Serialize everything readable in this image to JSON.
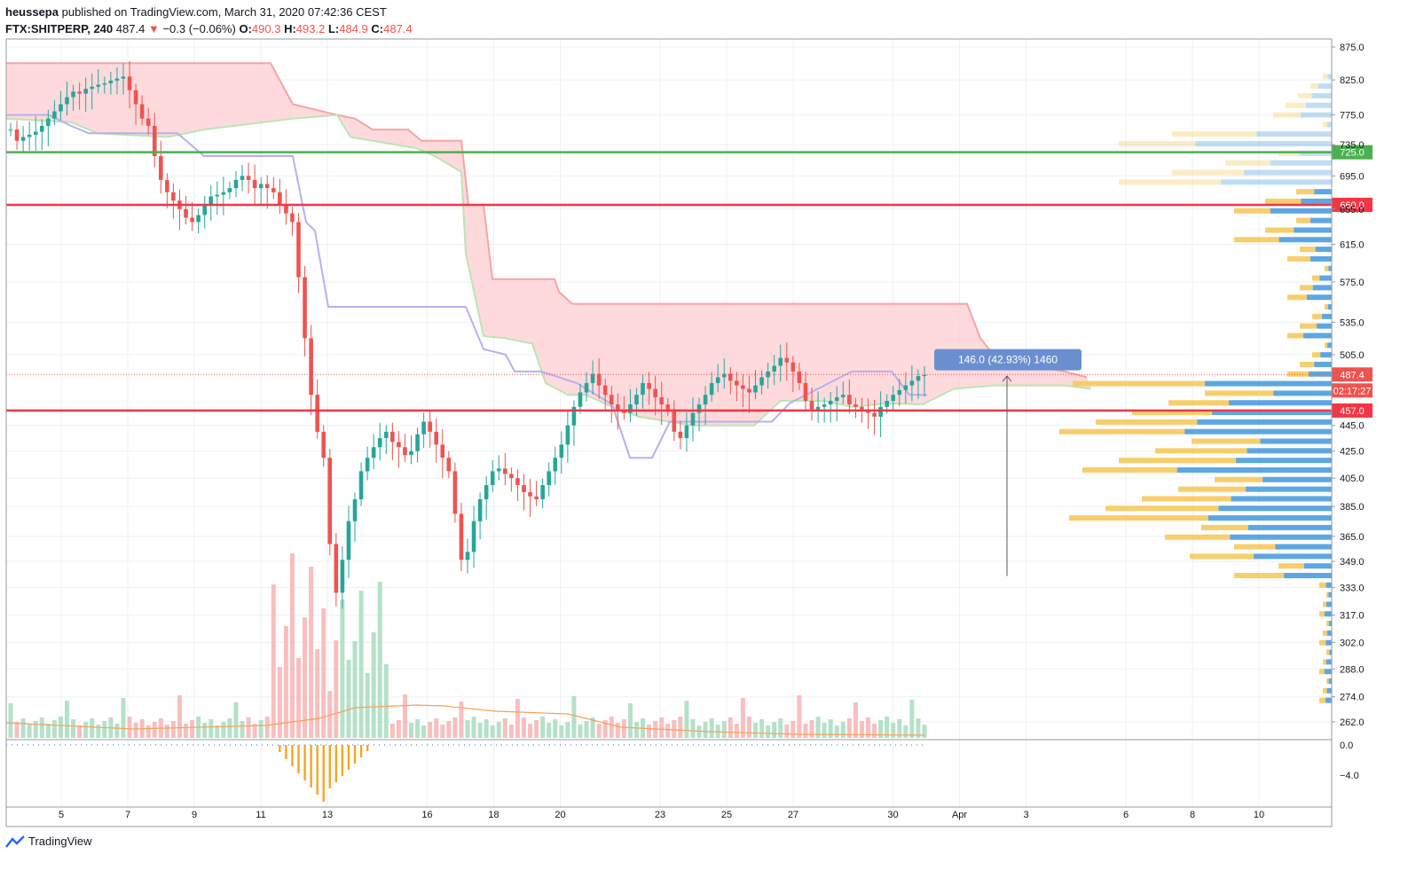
{
  "header": {
    "publisher": "heussepa",
    "published_text": "published on TradingView.com, March 31, 2020 07:42:36 CEST",
    "symbol": "FTX:SHITPERP, 240",
    "last": "487.4",
    "change": "−0.3 (−0.06%)",
    "o_label": "O:",
    "o_value": "490.3",
    "h_label": "H:",
    "h_value": "493.2",
    "l_label": "L:",
    "l_value": "484.9",
    "c_label": "C:",
    "c_value": "487.4"
  },
  "footer": {
    "brand": "TradingView"
  },
  "colors": {
    "up": "#26a69a",
    "down": "#ef5350",
    "hline_green": "#4caf50",
    "hline_red": "#f23645",
    "cloud_fill": "#ffcdd2",
    "span_b": "#f5a5a5",
    "span_a": "#b9e6b3",
    "kijun": "#b6b0f0",
    "vp_buy": "#4a9de0",
    "vp_sell": "#f7c95c",
    "ma_volume": "#f7a15a",
    "measure": "#6a8fd0"
  },
  "chart_data": {
    "type": "candlestick",
    "price_axis": {
      "ticks": [
        875.0,
        825.0,
        775.0,
        735.0,
        695.0,
        655.0,
        615.0,
        575.0,
        535.0,
        505.0,
        445.0,
        425.0,
        405.0,
        385.0,
        365.0,
        349.0,
        333.0,
        317.0,
        302.0,
        288.0,
        274.0,
        262.0
      ],
      "scale": "log"
    },
    "time_axis": {
      "ticks": [
        "5",
        "7",
        "9",
        "11",
        "13",
        "16",
        "18",
        "20",
        "23",
        "25",
        "27",
        "30",
        "Apr",
        "3",
        "6",
        "8",
        "10"
      ]
    },
    "horizontal_lines": [
      {
        "price": 725.0,
        "label": "725.0",
        "color": "#4caf50"
      },
      {
        "price": 660.0,
        "label": "660.0",
        "color": "#f23645"
      },
      {
        "price": 457.0,
        "label": "457.0",
        "color": "#f23645"
      }
    ],
    "last_price_label": "487.4",
    "countdown_label": "02:17:27",
    "measure": {
      "text": "146.0 (42.93%) 1460",
      "from_price": 340,
      "to_price": 486
    },
    "oscillator_axis": {
      "ticks": [
        "0.0",
        "−4.0"
      ]
    }
  }
}
